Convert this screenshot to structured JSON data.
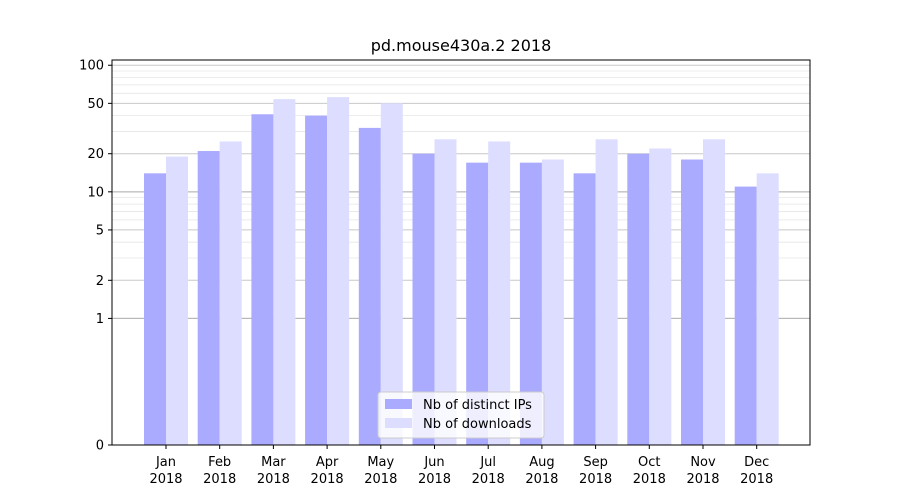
{
  "chart_data": {
    "type": "bar",
    "title": "pd.mouse430a.2 2018",
    "xlabel": "",
    "ylabel": "",
    "y_scale": "symlog",
    "ylim": [
      0,
      110
    ],
    "y_ticks": [
      {
        "value": 0,
        "label": "0"
      },
      {
        "value": 1,
        "label": "1"
      },
      {
        "value": 2,
        "label": "2"
      },
      {
        "value": 5,
        "label": "5"
      },
      {
        "value": 10,
        "label": "10"
      },
      {
        "value": 20,
        "label": "20"
      },
      {
        "value": 50,
        "label": "50"
      },
      {
        "value": 100,
        "label": "100"
      }
    ],
    "categories": [
      [
        "Jan",
        "2018"
      ],
      [
        "Feb",
        "2018"
      ],
      [
        "Mar",
        "2018"
      ],
      [
        "Apr",
        "2018"
      ],
      [
        "May",
        "2018"
      ],
      [
        "Jun",
        "2018"
      ],
      [
        "Jul",
        "2018"
      ],
      [
        "Aug",
        "2018"
      ],
      [
        "Sep",
        "2018"
      ],
      [
        "Oct",
        "2018"
      ],
      [
        "Nov",
        "2018"
      ],
      [
        "Dec",
        "2018"
      ]
    ],
    "series": [
      {
        "name": "Nb of distinct IPs",
        "color": "#aaaaff",
        "values": [
          14,
          21,
          41,
          40,
          32,
          20,
          17,
          17,
          14,
          20,
          18,
          11
        ]
      },
      {
        "name": "Nb of downloads",
        "color": "#ddddff",
        "values": [
          19,
          25,
          54,
          56,
          50,
          26,
          25,
          18,
          26,
          22,
          26,
          14
        ]
      }
    ],
    "grid": true,
    "legend_position": "bottom-center"
  }
}
